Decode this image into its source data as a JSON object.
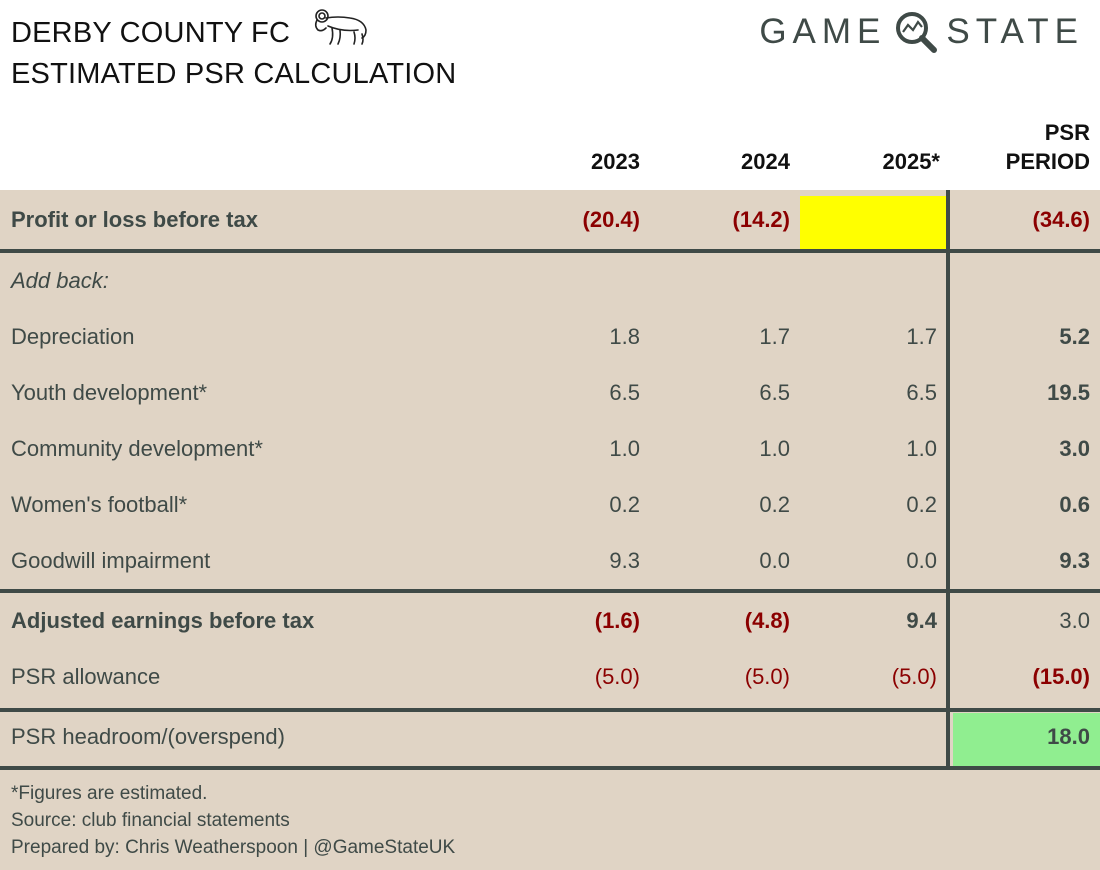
{
  "header": {
    "title_line1": "DERBY COUNTY FC",
    "title_line2": "ESTIMATED PSR CALCULATION",
    "brand": "GAME",
    "brand2": "STATE"
  },
  "columns": {
    "c2023": "2023",
    "c2024": "2024",
    "c2025": "2025*",
    "psr_line1": "PSR",
    "psr_line2": "PERIOD"
  },
  "rows": {
    "profit": {
      "label": "Profit or loss before tax",
      "v2023": "(20.4)",
      "v2024": "(14.2)",
      "v2025": "",
      "psr": "(34.6)"
    },
    "addback": {
      "label": "Add back:"
    },
    "depreciation": {
      "label": "Depreciation",
      "v2023": "1.8",
      "v2024": "1.7",
      "v2025": "1.7",
      "psr": "5.2"
    },
    "youth": {
      "label": "Youth development*",
      "v2023": "6.5",
      "v2024": "6.5",
      "v2025": "6.5",
      "psr": "19.5"
    },
    "community": {
      "label": "Community development*",
      "v2023": "1.0",
      "v2024": "1.0",
      "v2025": "1.0",
      "psr": "3.0"
    },
    "women": {
      "label": "Women's football*",
      "v2023": "0.2",
      "v2024": "0.2",
      "v2025": "0.2",
      "psr": "0.6"
    },
    "goodwill": {
      "label": "Goodwill impairment",
      "v2023": "9.3",
      "v2024": "0.0",
      "v2025": "0.0",
      "psr": "9.3"
    },
    "adjusted": {
      "label": "Adjusted earnings before tax",
      "v2023": "(1.6)",
      "v2024": "(4.8)",
      "v2025": "9.4",
      "psr": "3.0"
    },
    "allowance": {
      "label": "PSR allowance",
      "v2023": "(5.0)",
      "v2024": "(5.0)",
      "v2025": "(5.0)",
      "psr": "(15.0)"
    },
    "headroom": {
      "label": "PSR headroom/(overspend)",
      "psr": "18.0"
    }
  },
  "footer": {
    "note": "*Figures are estimated.",
    "source": "Source: club financial statements",
    "prepared": "Prepared by: Chris Weatherspoon | @GameStateUK"
  },
  "colors": {
    "background": "#e0d4c5",
    "rule": "#3f4a47",
    "negative": "#8b0000",
    "highlight_yellow": "#ffff00",
    "highlight_green": "#90ee90"
  }
}
